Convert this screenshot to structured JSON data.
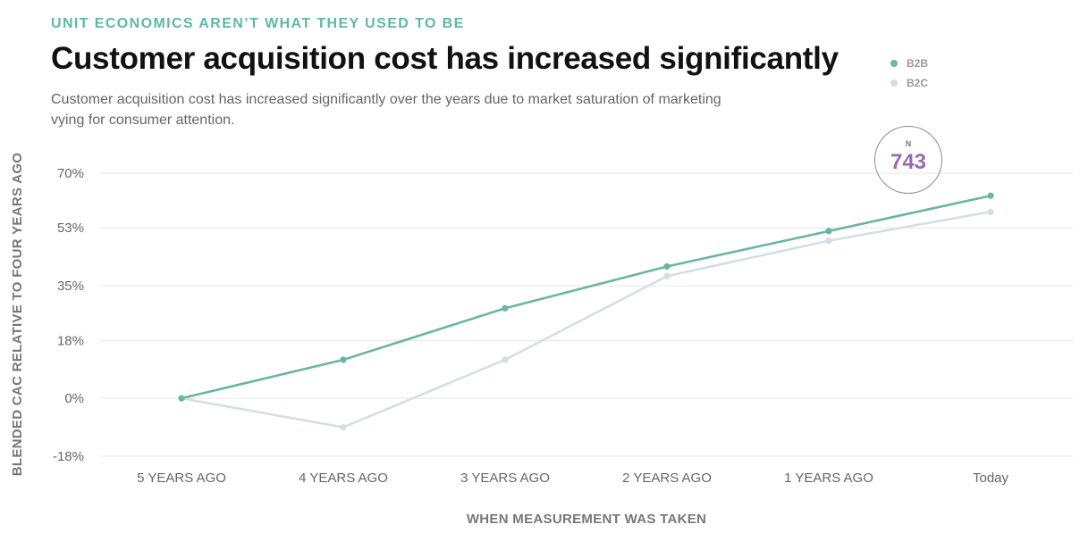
{
  "header": {
    "eyebrow": "UNIT ECONOMICS AREN’T WHAT THEY USED TO BE",
    "title": "Customer acquisition cost has increased significantly",
    "subtitle": "Customer acquisition cost has increased significantly over the years due to market saturation of marketing vying for consumer attention."
  },
  "badge": {
    "label": "N",
    "value": "743"
  },
  "chart_data": {
    "type": "line",
    "categories": [
      "5 YEARS AGO",
      "4 YEARS AGO",
      "3 YEARS AGO",
      "2 YEARS AGO",
      "1 YEARS AGO",
      "Today"
    ],
    "series": [
      {
        "name": "B2B",
        "color": "#6bb5a2",
        "values": [
          0,
          12,
          28,
          41,
          52,
          63
        ]
      },
      {
        "name": "B2C",
        "color": "#d3dfe3",
        "values": [
          0,
          -9,
          12,
          38,
          49,
          58
        ]
      }
    ],
    "yticks": [
      -18,
      0,
      18,
      35,
      53,
      70
    ],
    "ytick_labels": [
      "-18%",
      "0%",
      "18%",
      "35%",
      "53%",
      "70%"
    ],
    "ylim": [
      -18,
      70
    ],
    "xlabel": "WHEN MEASUREMENT WAS TAKEN",
    "ylabel": "BLENDED CAC RELATIVE TO FOUR YEARS AGO",
    "grid": true,
    "legend_position": "top-right"
  }
}
